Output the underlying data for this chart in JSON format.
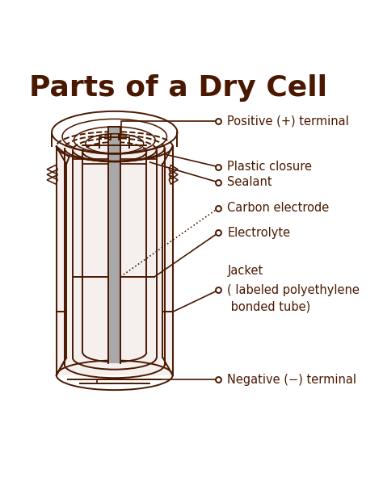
{
  "title": "Parts of a Dry Cell",
  "title_fontsize": 26,
  "title_fontweight": "bold",
  "color": "#4a1800",
  "bg_color": "#ffffff",
  "labels": {
    "positive_terminal": "Positive (+) terminal",
    "plastic_closure": "Plastic closure",
    "sealant": "Sealant",
    "carbon_electrode": "Carbon electrode",
    "electrolyte": "Electrolyte",
    "jacket_line1": "Jacket",
    "jacket_line2": "( labeled polyethylene",
    "jacket_line3": " bonded tube)",
    "negative_terminal": "Negative (−) terminal"
  },
  "label_fontsize": 10.5,
  "figsize": [
    4.74,
    6.07
  ],
  "dpi": 100
}
